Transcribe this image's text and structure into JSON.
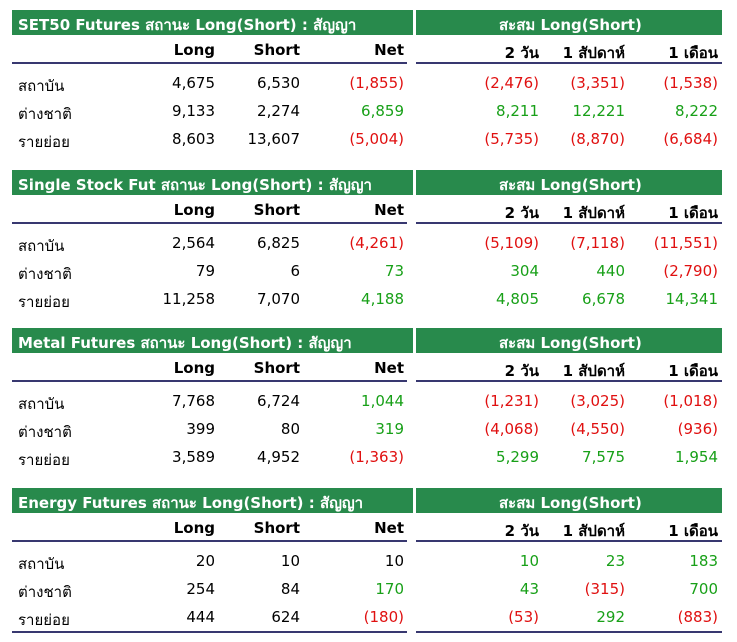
{
  "sections": [
    {
      "title": "SET50 Futures สถานะ Long(Short) : สัญญา",
      "accum_title": "สะสม Long(Short)",
      "columns": [
        "Long",
        "Short",
        "Net",
        "2 วัน",
        "1 สัปดาห์",
        "1 เดือน"
      ],
      "rows": [
        {
          "label": "สถาบัน",
          "values": [
            "4,675",
            "6,530",
            "(1,855)",
            "(2,476)",
            "(3,351)",
            "(1,538)"
          ],
          "colors": [
            "blk",
            "blk",
            "neg",
            "neg",
            "neg",
            "neg"
          ]
        },
        {
          "label": "ต่างชาติ",
          "values": [
            "9,133",
            "2,274",
            "6,859",
            "8,211",
            "12,221",
            "8,222"
          ],
          "colors": [
            "blk",
            "blk",
            "pos",
            "pos",
            "pos",
            "pos"
          ]
        },
        {
          "label": "รายย่อย",
          "values": [
            "8,603",
            "13,607",
            "(5,004)",
            "(5,735)",
            "(8,870)",
            "(6,684)"
          ],
          "colors": [
            "blk",
            "blk",
            "neg",
            "neg",
            "neg",
            "neg"
          ]
        }
      ]
    },
    {
      "title": "Single Stock Fut สถานะ Long(Short) : สัญญา",
      "accum_title": "สะสม Long(Short)",
      "columns": [
        "Long",
        "Short",
        "Net",
        "2 วัน",
        "1 สัปดาห์",
        "1 เดือน"
      ],
      "rows": [
        {
          "label": "สถาบัน",
          "values": [
            "2,564",
            "6,825",
            "(4,261)",
            "(5,109)",
            "(7,118)",
            "(11,551)"
          ],
          "colors": [
            "blk",
            "blk",
            "neg",
            "neg",
            "neg",
            "neg"
          ]
        },
        {
          "label": "ต่างชาติ",
          "values": [
            "79",
            "6",
            "73",
            "304",
            "440",
            "(2,790)"
          ],
          "colors": [
            "blk",
            "blk",
            "pos",
            "pos",
            "pos",
            "neg"
          ]
        },
        {
          "label": "รายย่อย",
          "values": [
            "11,258",
            "7,070",
            "4,188",
            "4,805",
            "6,678",
            "14,341"
          ],
          "colors": [
            "blk",
            "blk",
            "pos",
            "pos",
            "pos",
            "pos"
          ]
        }
      ]
    },
    {
      "title": "Metal Futures สถานะ Long(Short) : สัญญา",
      "accum_title": "สะสม Long(Short)",
      "columns": [
        "Long",
        "Short",
        "Net",
        "2 วัน",
        "1 สัปดาห์",
        "1 เดือน"
      ],
      "rows": [
        {
          "label": "สถาบัน",
          "values": [
            "7,768",
            "6,724",
            "1,044",
            "(1,231)",
            "(3,025)",
            "(1,018)"
          ],
          "colors": [
            "blk",
            "blk",
            "pos",
            "neg",
            "neg",
            "neg"
          ]
        },
        {
          "label": "ต่างชาติ",
          "values": [
            "399",
            "80",
            "319",
            "(4,068)",
            "(4,550)",
            "(936)"
          ],
          "colors": [
            "blk",
            "blk",
            "pos",
            "neg",
            "neg",
            "neg"
          ]
        },
        {
          "label": "รายย่อย",
          "values": [
            "3,589",
            "4,952",
            "(1,363)",
            "5,299",
            "7,575",
            "1,954"
          ],
          "colors": [
            "blk",
            "blk",
            "neg",
            "pos",
            "pos",
            "pos"
          ]
        }
      ]
    },
    {
      "title": "Energy Futures สถานะ Long(Short) : สัญญา",
      "accum_title": "สะสม Long(Short)",
      "columns": [
        "Long",
        "Short",
        "Net",
        "2 วัน",
        "1 สัปดาห์",
        "1 เดือน"
      ],
      "rows": [
        {
          "label": "สถาบัน",
          "values": [
            "20",
            "10",
            "10",
            "10",
            "23",
            "183"
          ],
          "colors": [
            "blk",
            "blk",
            "blk",
            "pos",
            "pos",
            "pos"
          ]
        },
        {
          "label": "ต่างชาติ",
          "values": [
            "254",
            "84",
            "170",
            "43",
            "(315)",
            "700"
          ],
          "colors": [
            "blk",
            "blk",
            "pos",
            "pos",
            "neg",
            "pos"
          ]
        },
        {
          "label": "รายย่อย",
          "values": [
            "444",
            "624",
            "(180)",
            "(53)",
            "292",
            "(883)"
          ],
          "colors": [
            "blk",
            "blk",
            "neg",
            "neg",
            "pos",
            "neg"
          ]
        }
      ]
    }
  ]
}
